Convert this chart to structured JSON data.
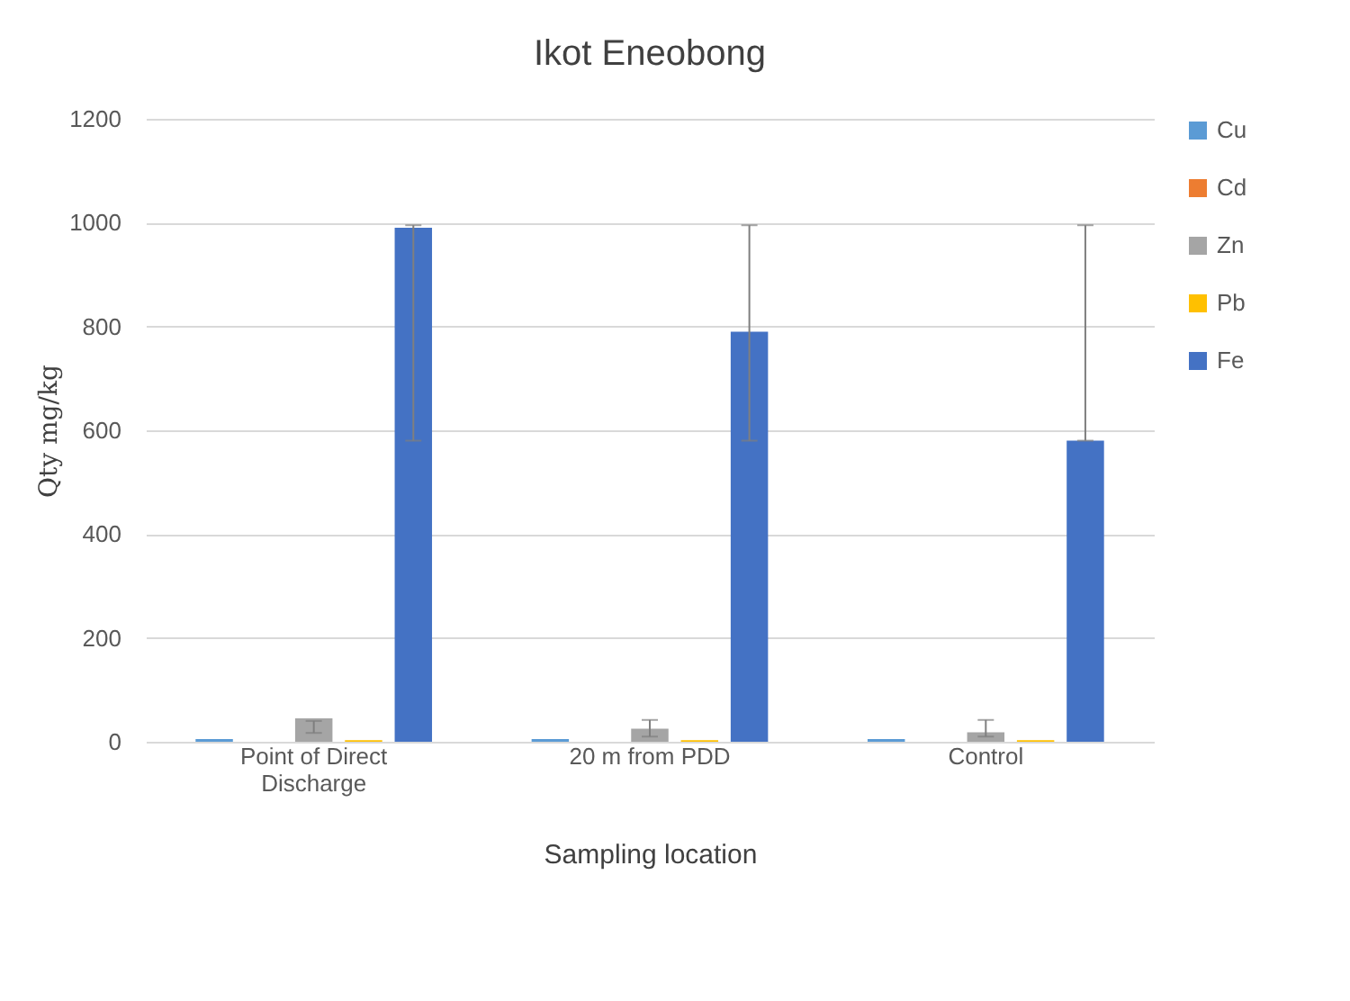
{
  "chart_data": {
    "type": "bar",
    "title": "Ikot Eneobong",
    "xlabel": "Sampling   location",
    "ylabel": "Qty mg/kg",
    "categories": [
      "Point of Direct Discharge",
      "20 m from PDD",
      "Control"
    ],
    "series": [
      {
        "name": "Cu",
        "color": "#5b9bd5",
        "values": [
          5,
          5,
          5
        ]
      },
      {
        "name": "Cd",
        "color": "#ed7d31",
        "values": [
          0,
          0,
          0
        ]
      },
      {
        "name": "Zn",
        "color": "#a5a5a5",
        "values": [
          45,
          25,
          18
        ],
        "errors": [
          [
            17,
            40
          ],
          [
            10,
            42
          ],
          [
            10,
            42
          ]
        ]
      },
      {
        "name": "Pb",
        "color": "#ffc000",
        "values": [
          3,
          3,
          3
        ]
      },
      {
        "name": "Fe",
        "color": "#4472c4",
        "values": [
          990,
          790,
          580
        ],
        "errors": [
          [
            580,
            995
          ],
          [
            580,
            995
          ],
          [
            580,
            995
          ]
        ]
      }
    ],
    "ylim": [
      0,
      1200
    ],
    "yticks": [
      0,
      200,
      400,
      600,
      800,
      1000,
      1200
    ],
    "grid": "y",
    "legend": "right"
  }
}
